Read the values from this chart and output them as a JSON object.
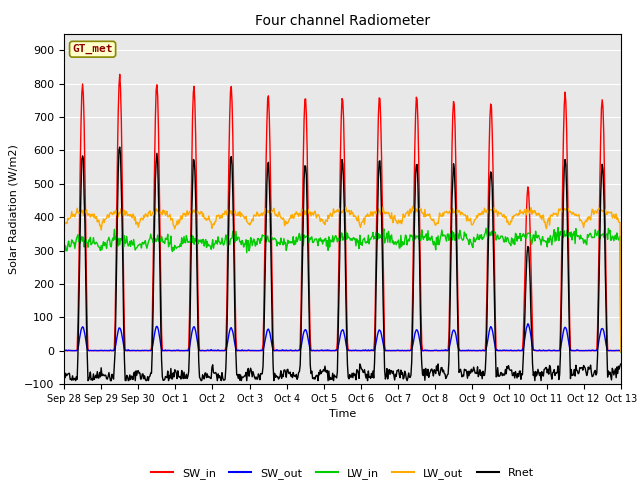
{
  "title": "Four channel Radiometer",
  "xlabel": "Time",
  "ylabel": "Solar Radiation (W/m2)",
  "ylim": [
    -100,
    950
  ],
  "yticks": [
    -100,
    0,
    100,
    200,
    300,
    400,
    500,
    600,
    700,
    800,
    900
  ],
  "plot_bg_color": "#e8e8e8",
  "fig_bg_color": "#ffffff",
  "legend_label": "GT_met",
  "series": {
    "SW_in": {
      "color": "#ff0000",
      "lw": 1.0
    },
    "SW_out": {
      "color": "#0000ff",
      "lw": 1.0
    },
    "LW_in": {
      "color": "#00cc00",
      "lw": 1.0
    },
    "LW_out": {
      "color": "#ffaa00",
      "lw": 1.0
    },
    "Rnet": {
      "color": "#000000",
      "lw": 1.0
    }
  },
  "x_tick_labels": [
    "Sep 28",
    "Sep 29",
    "Sep 30",
    "Oct 1",
    "Oct 2",
    "Oct 3",
    "Oct 4",
    "Oct 5",
    "Oct 6",
    "Oct 7",
    "Oct 8",
    "Oct 9",
    "Oct 10",
    "Oct 11",
    "Oct 12",
    "Oct 13"
  ],
  "sw_in_peaks": [
    800,
    825,
    800,
    790,
    790,
    760,
    755,
    755,
    760,
    760,
    750,
    740,
    490,
    775,
    755
  ],
  "sw_out_peaks": [
    90,
    85,
    90,
    90,
    85,
    80,
    78,
    78,
    78,
    78,
    78,
    88,
    100,
    88,
    85
  ],
  "rnet_night": -70,
  "rnet_day_scale": 610
}
